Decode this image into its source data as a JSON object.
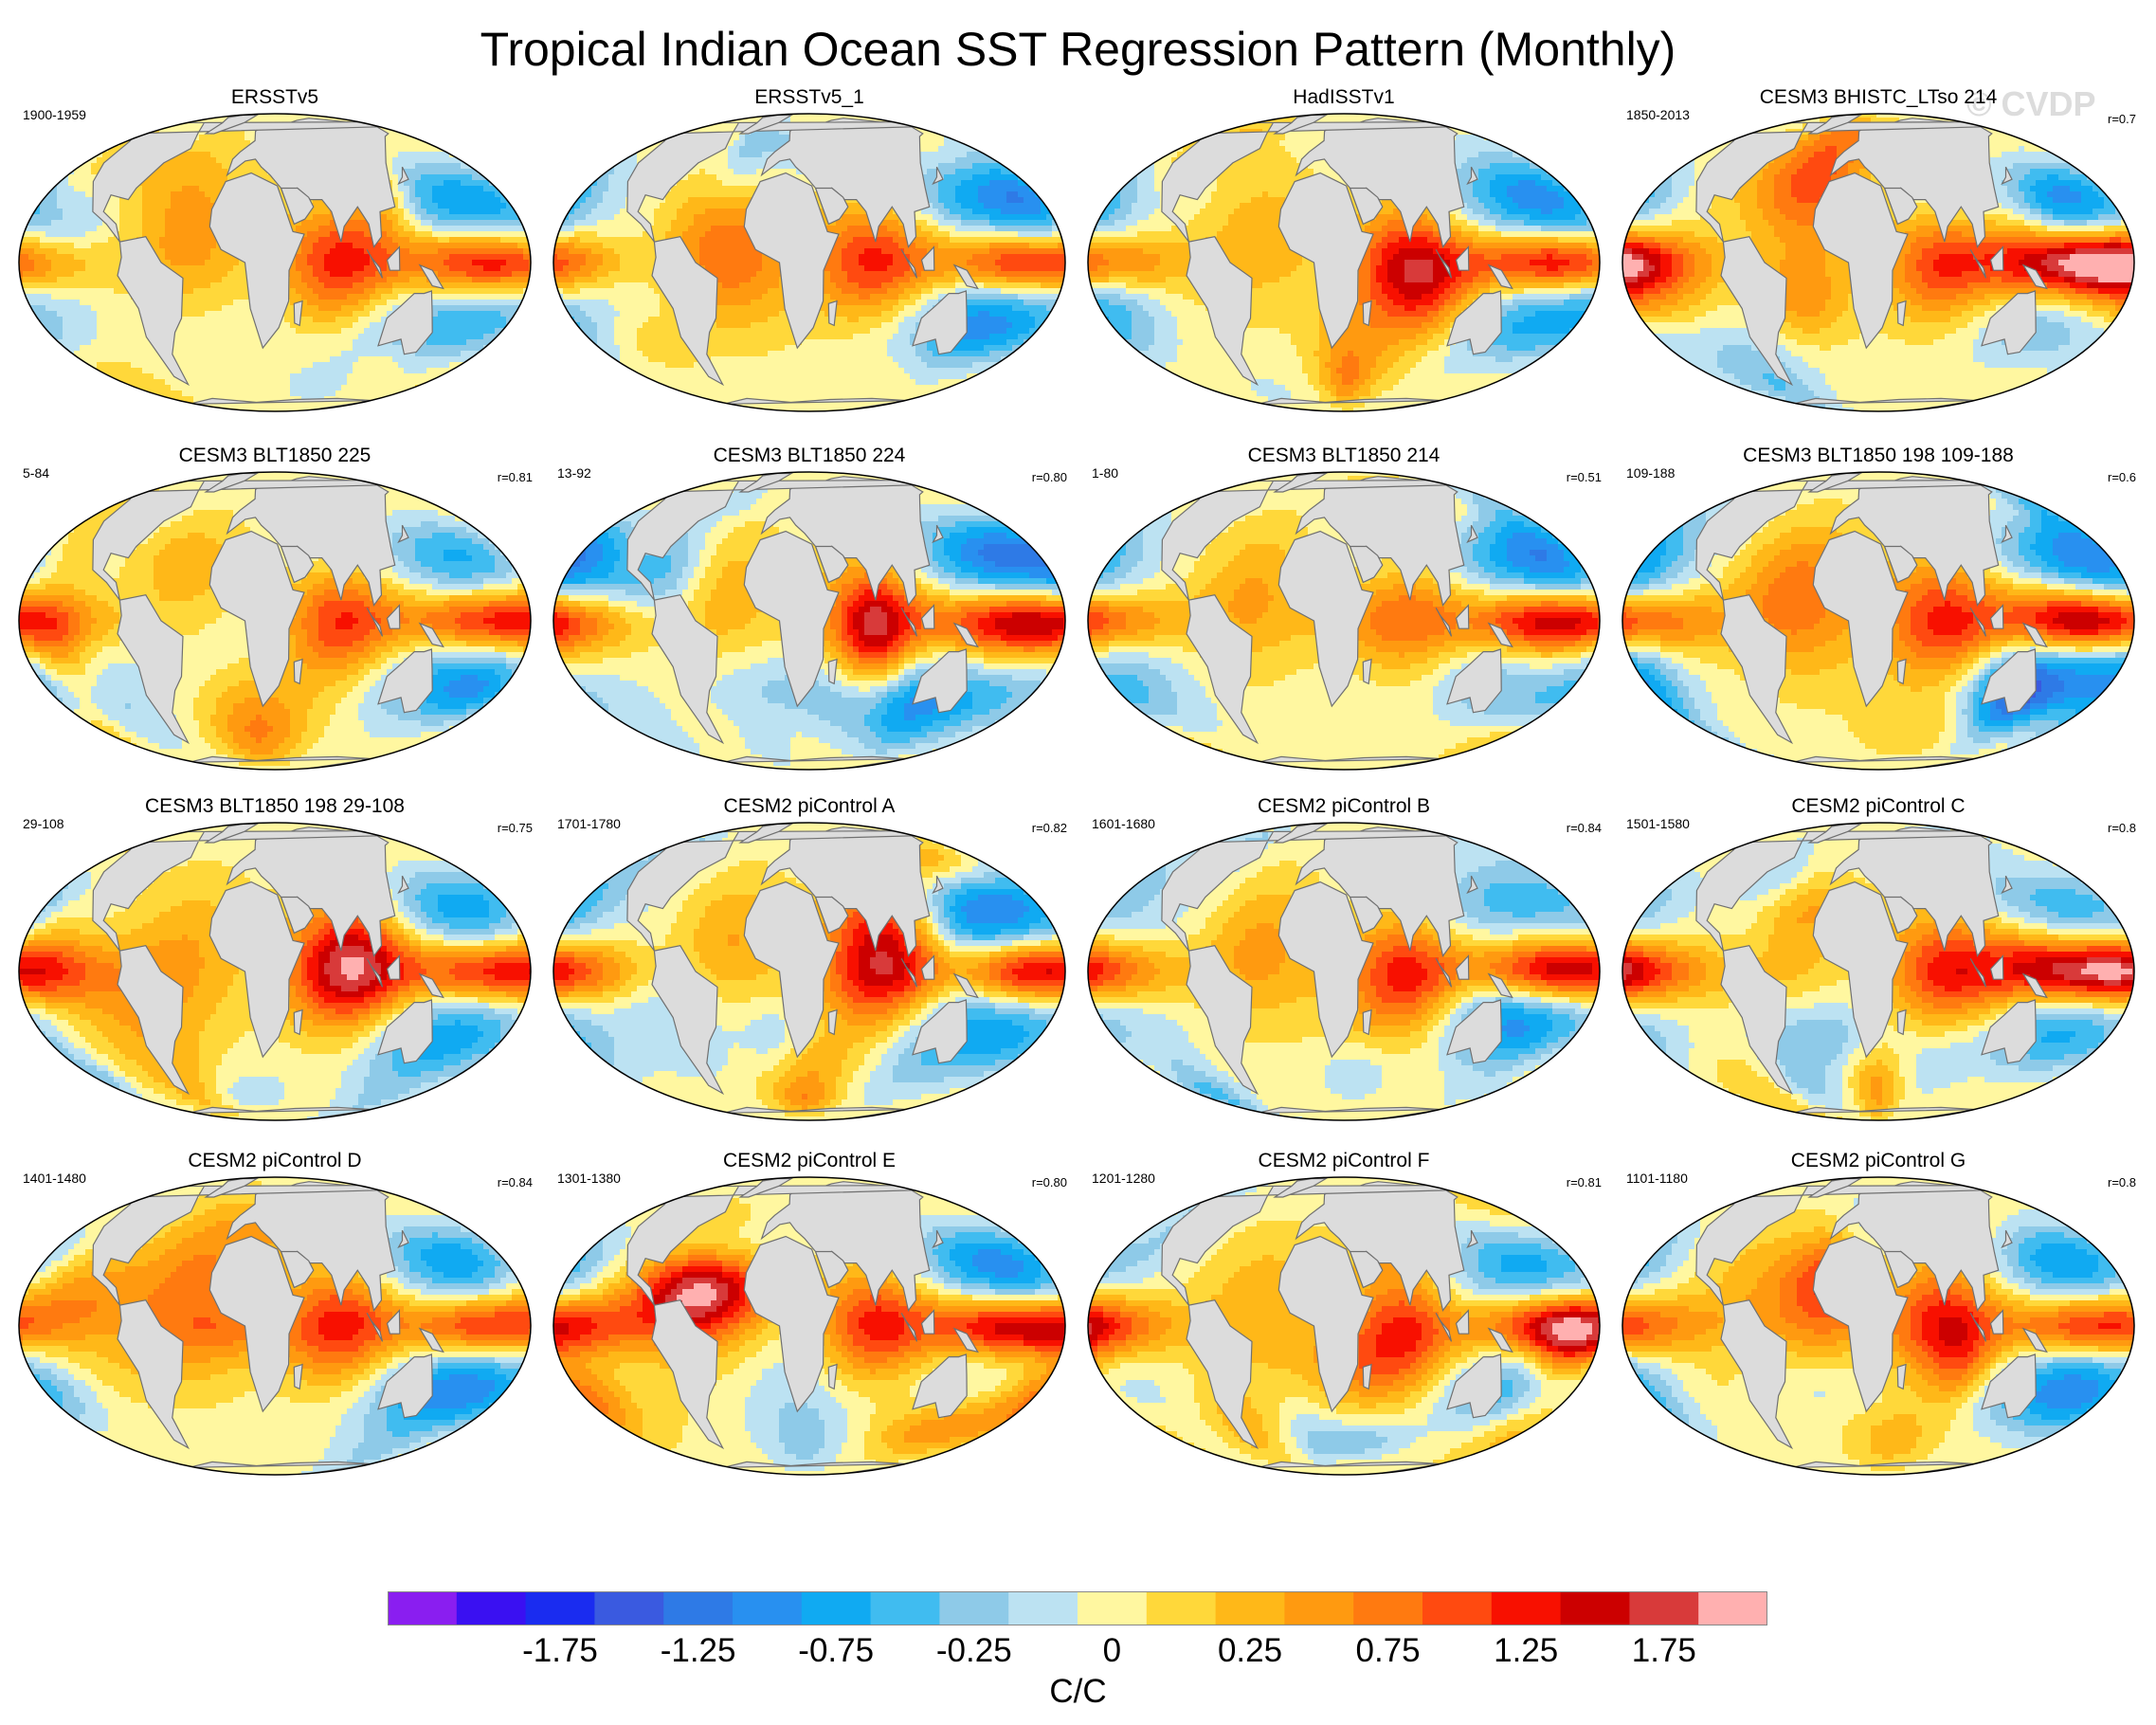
{
  "title": "Tropical Indian Ocean SST Regression Pattern (Monthly)",
  "watermark": "© CVDP",
  "panels": [
    {
      "title": "ERSSTv5",
      "years": "1900-1959",
      "corr": "",
      "seed": 11
    },
    {
      "title": "ERSSTv5_1",
      "years": "",
      "corr": "",
      "seed": 23
    },
    {
      "title": "HadISSTv1",
      "years": "",
      "corr": "",
      "seed": 37
    },
    {
      "title": "CESM3 BHISTC_LTso 214",
      "years": "1850-2013",
      "corr": "r=0.7",
      "seed": 41
    },
    {
      "title": "CESM3 BLT1850 225",
      "years": "5-84",
      "corr": "r=0.81",
      "seed": 53
    },
    {
      "title": "CESM3 BLT1850 224",
      "years": "13-92",
      "corr": "r=0.80",
      "seed": 67
    },
    {
      "title": "CESM3 BLT1850 214",
      "years": "1-80",
      "corr": "r=0.51",
      "seed": 71
    },
    {
      "title": "CESM3 BLT1850 198 109-188",
      "years": "109-188",
      "corr": "r=0.6",
      "seed": 83
    },
    {
      "title": "CESM3 BLT1850 198 29-108",
      "years": "29-108",
      "corr": "r=0.75",
      "seed": 97
    },
    {
      "title": "CESM2 piControl A",
      "years": "1701-1780",
      "corr": "r=0.82",
      "seed": 101
    },
    {
      "title": "CESM2 piControl B",
      "years": "1601-1680",
      "corr": "r=0.84",
      "seed": 113
    },
    {
      "title": "CESM2 piControl C",
      "years": "1501-1580",
      "corr": "r=0.8",
      "seed": 127
    },
    {
      "title": "CESM2 piControl D",
      "years": "1401-1480",
      "corr": "r=0.84",
      "seed": 131
    },
    {
      "title": "CESM2 piControl E",
      "years": "1301-1380",
      "corr": "r=0.80",
      "seed": 149
    },
    {
      "title": "CESM2 piControl F",
      "years": "1201-1280",
      "corr": "r=0.81",
      "seed": 157
    },
    {
      "title": "CESM2 piControl G",
      "years": "1101-1180",
      "corr": "r=0.8",
      "seed": 163
    }
  ],
  "colorbar": {
    "units": "C/C",
    "labels": [
      "-1.75",
      "-1.25",
      "-0.75",
      "-0.25",
      "0",
      "0.25",
      "0.75",
      "1.25",
      "1.75"
    ],
    "label_bin_edges": [
      2,
      4,
      6,
      8,
      10,
      12,
      14,
      16,
      18
    ],
    "colors": [
      "#8a1ef0",
      "#3a10f2",
      "#1a2cf0",
      "#3a5ae0",
      "#2e7ae6",
      "#2890f0",
      "#10aaf2",
      "#40bcf0",
      "#8ecae8",
      "#bce2f2",
      "#fff7a0",
      "#ffd83a",
      "#ffb818",
      "#ff9a10",
      "#ff7a10",
      "#ff4a10",
      "#f81000",
      "#cc0000",
      "#d83a3a",
      "#ffb0b0"
    ]
  },
  "map_style": {
    "land_color": "#dcdcdc",
    "coast_color": "#707070"
  }
}
